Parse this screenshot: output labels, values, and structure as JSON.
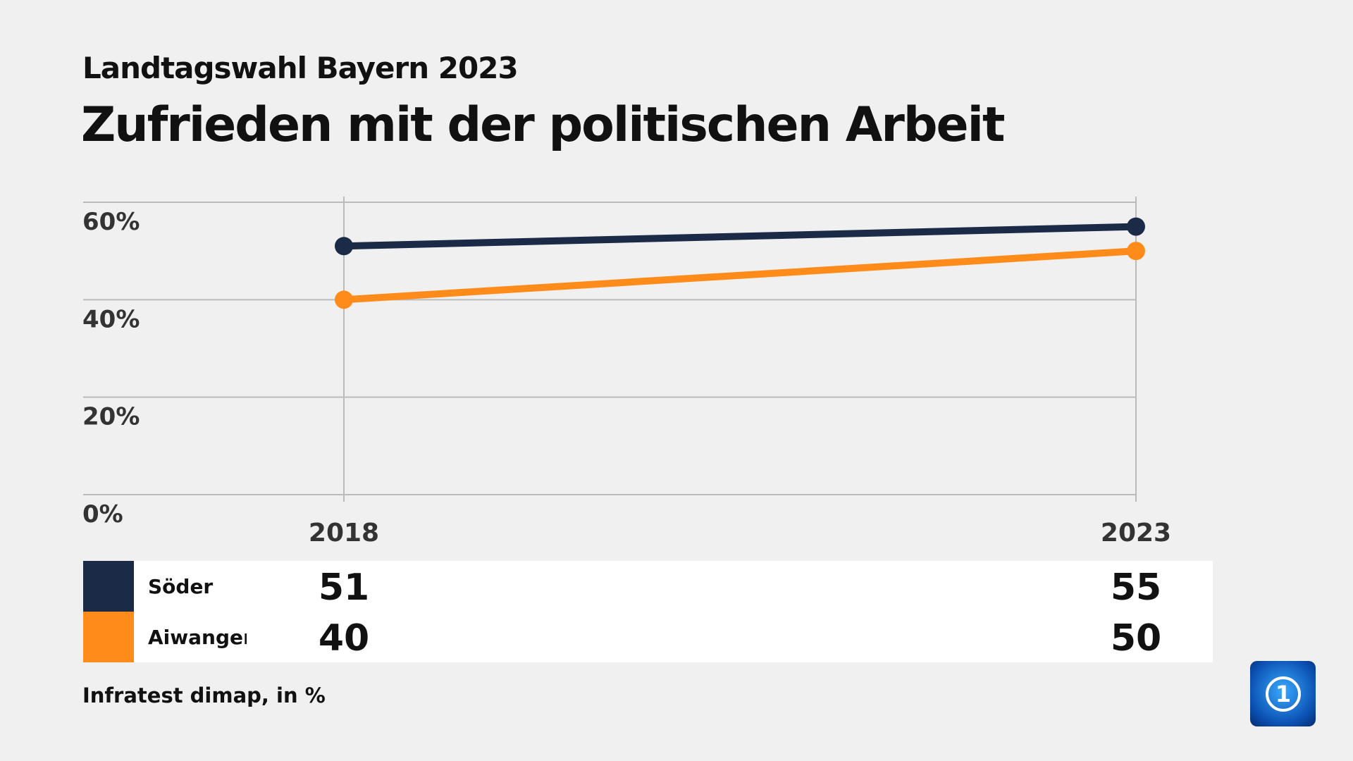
{
  "header": {
    "subtitle": "Landtagswahl Bayern 2023",
    "title": "Zufrieden mit der politischen Arbeit"
  },
  "chart_data": {
    "type": "line",
    "title": "Zufrieden mit der politischen Arbeit",
    "subtitle": "Landtagswahl Bayern 2023",
    "categories": [
      "2018",
      "2023"
    ],
    "series": [
      {
        "name": "Söder",
        "values": [
          51,
          55
        ],
        "color": "#1b2a47"
      },
      {
        "name": "Aiwanger",
        "values": [
          40,
          50
        ],
        "color": "#ff8c1a"
      }
    ],
    "yticks": [
      "0%",
      "20%",
      "40%",
      "60%"
    ],
    "ylim": [
      0,
      60
    ],
    "grid": true,
    "legend": "bottom table"
  },
  "legend": {
    "rows": [
      {
        "name": "Söder",
        "v2018": "51",
        "v2023": "55"
      },
      {
        "name": "Aiwanger",
        "v2018": "40",
        "v2023": "50"
      }
    ]
  },
  "source": "Infratest dimap, in %",
  "logo": {
    "text": "1",
    "icon": "tagesschau-logo"
  }
}
